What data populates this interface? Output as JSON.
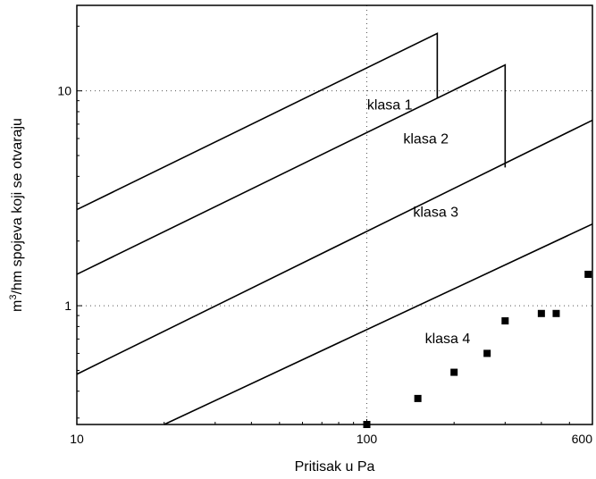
{
  "chart_data": {
    "type": "line",
    "xscale": "log",
    "yscale": "log",
    "xlim": [
      10,
      600
    ],
    "ylim": [
      0.28,
      25
    ],
    "xlabel": "Pritisak u Pa",
    "ylabel_prefix": "m",
    "ylabel_sup": "3",
    "ylabel_rest": "/hm spojeva koji se otvaraju",
    "x_ticks": [
      {
        "value": 10,
        "label": "10"
      },
      {
        "value": 100,
        "label": "100"
      },
      {
        "value": 600,
        "label": "600"
      }
    ],
    "y_ticks": [
      {
        "value": 1,
        "label": "1"
      },
      {
        "value": 10,
        "label": "10"
      }
    ],
    "grid": true,
    "series": [
      {
        "name": "klasa 1",
        "x": [
          10,
          175,
          175
        ],
        "y": [
          2.8,
          18.5,
          9.2
        ]
      },
      {
        "name": "klasa 2",
        "x": [
          10,
          300,
          300
        ],
        "y": [
          1.4,
          13.2,
          4.4
        ]
      },
      {
        "name": "klasa 3",
        "x": [
          10,
          600
        ],
        "y": [
          0.48,
          7.3
        ]
      },
      {
        "name": "klasa 4",
        "x": [
          20,
          600
        ],
        "y": [
          0.28,
          2.4
        ]
      }
    ],
    "class_labels": [
      {
        "text": "klasa 1",
        "x": 120,
        "y": 8.2
      },
      {
        "text": "klasa 2",
        "x": 160,
        "y": 5.7
      },
      {
        "text": "klasa 3",
        "x": 173,
        "y": 2.6
      },
      {
        "text": "klasa 4",
        "x": 190,
        "y": 0.67
      }
    ],
    "measurements": {
      "type": "scatter",
      "marker": "square",
      "x": [
        100,
        150,
        200,
        260,
        300,
        400,
        450,
        580
      ],
      "y": [
        0.28,
        0.37,
        0.49,
        0.6,
        0.85,
        0.92,
        0.92,
        1.4
      ]
    },
    "colors": {
      "lines": "#000000",
      "grid": "#555555",
      "markers": "#000000"
    }
  }
}
